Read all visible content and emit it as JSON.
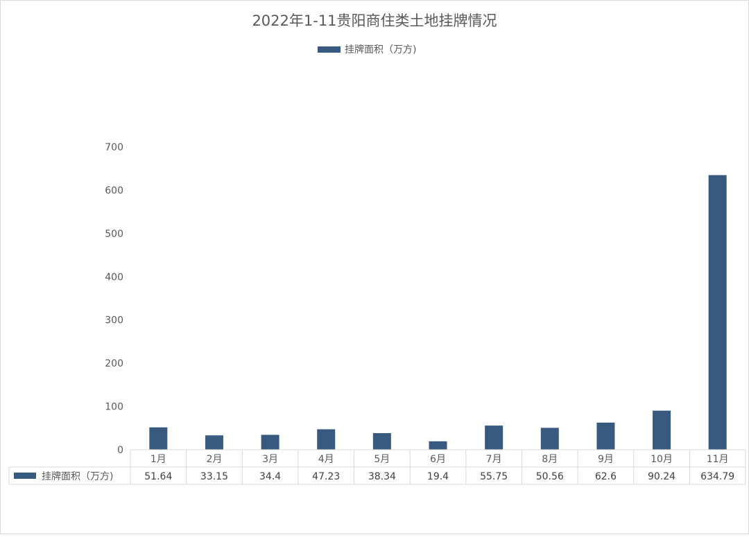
{
  "chart_data": {
    "type": "bar",
    "title": "2022年1-11贵阳商住类土地挂牌情况",
    "legend_position": "top",
    "categories": [
      "1月",
      "2月",
      "3月",
      "4月",
      "5月",
      "6月",
      "7月",
      "8月",
      "9月",
      "10月",
      "11月"
    ],
    "series": [
      {
        "name": "挂牌面积（万方)",
        "color": "#385a7f",
        "values": [
          51.64,
          33.15,
          34.4,
          47.23,
          38.34,
          19.4,
          55.75,
          50.56,
          62.6,
          90.24,
          634.79
        ],
        "value_labels": [
          "51.64",
          "33.15",
          "34.4",
          "47.23",
          "38.34",
          "19.4",
          "55.75",
          "50.56",
          "62.6",
          "90.24",
          "634.79"
        ]
      }
    ],
    "ylim": [
      0,
      700
    ],
    "y_ticks": [
      "0",
      "100",
      "200",
      "300",
      "400",
      "500",
      "600",
      "700"
    ],
    "grid": false,
    "data_table": true
  }
}
